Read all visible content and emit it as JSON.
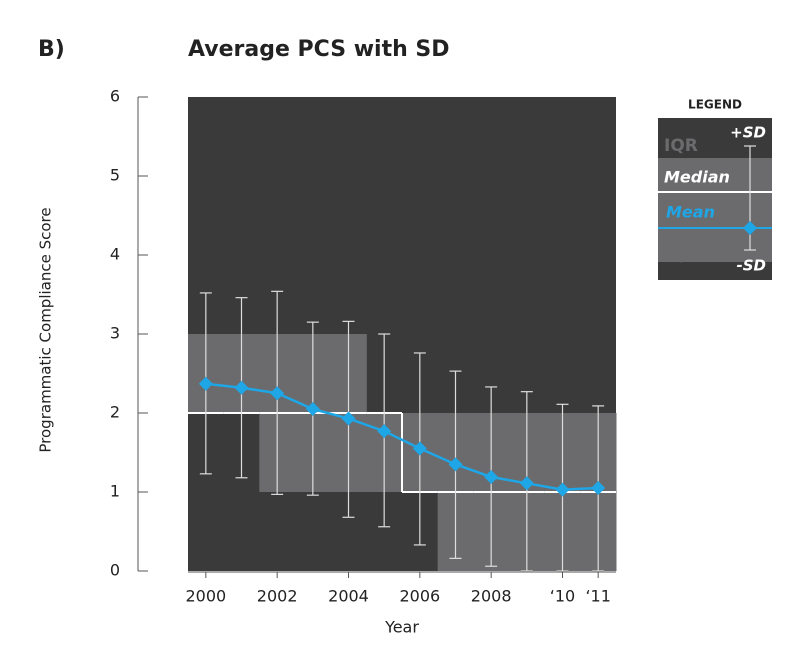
{
  "chart_data": {
    "type": "line",
    "panel_label": "B)",
    "title": "Average PCS with SD",
    "x_label": "Year",
    "y_label": "Programmatic Compliance Score",
    "x": [
      2000,
      2001,
      2002,
      2003,
      2004,
      2005,
      2006,
      2007,
      2008,
      2009,
      2010,
      2011
    ],
    "mean": {
      "name": "Mean",
      "color": "#1ea6e6",
      "values": [
        2.37,
        2.32,
        2.25,
        2.05,
        1.93,
        1.77,
        1.55,
        1.35,
        1.19,
        1.11,
        1.03,
        1.05
      ]
    },
    "sd_upper": [
      3.52,
      3.46,
      3.54,
      3.15,
      3.16,
      3.0,
      2.76,
      2.53,
      2.33,
      2.27,
      2.11,
      2.09
    ],
    "sd_lower": [
      1.23,
      1.18,
      0.97,
      0.96,
      0.68,
      0.56,
      0.33,
      0.16,
      0.06,
      0,
      0,
      0
    ],
    "median": [
      2,
      2,
      2,
      2,
      2,
      2,
      1,
      1,
      1,
      1,
      1,
      1
    ],
    "q1": [
      2,
      2,
      1,
      1,
      1,
      1,
      1,
      0,
      0,
      0,
      0,
      0
    ],
    "q3": [
      3,
      3,
      3,
      3,
      3,
      2,
      2,
      2,
      2,
      2,
      2,
      2
    ],
    "xlim": [
      1999.5,
      2011.5
    ],
    "ylim": [
      0,
      6
    ],
    "xticks": [
      2000,
      2002,
      2004,
      2006,
      2008,
      {
        "value": 2010,
        "label": "‘10"
      },
      {
        "value": 2011,
        "label": "‘11"
      }
    ],
    "yticks": [
      0,
      1,
      2,
      3,
      4,
      5,
      6
    ],
    "legend": {
      "title": "LEGEND",
      "plus_sd": "+SD",
      "iqr_top": "IQR",
      "median": "Median",
      "mean": "Mean",
      "iqr_bottom": "IQR",
      "minus_sd": "-SD"
    }
  }
}
